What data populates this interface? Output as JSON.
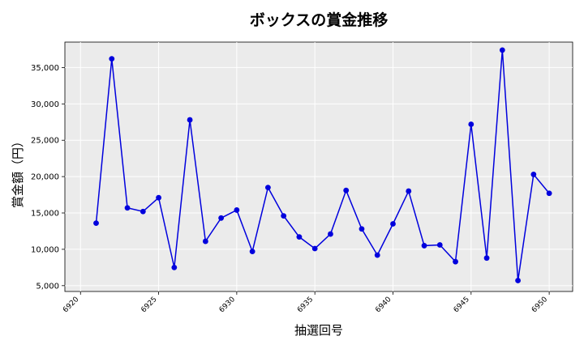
{
  "chart_data": {
    "type": "line",
    "title": "ボックスの賞金推移",
    "xlabel": "抽選回号",
    "ylabel": "賞金額（円）",
    "xlim": [
      6919,
      6951.5
    ],
    "ylim": [
      4200,
      38500
    ],
    "x_ticks": [
      6920,
      6925,
      6930,
      6935,
      6940,
      6945,
      6950
    ],
    "y_ticks": [
      5000,
      10000,
      15000,
      20000,
      25000,
      30000,
      35000
    ],
    "y_tick_labels": [
      "5,000",
      "10,000",
      "15,000",
      "20,000",
      "25,000",
      "30,000",
      "35,000"
    ],
    "grid": true,
    "series_color": "#0000dd",
    "plot_background": "#ebebeb",
    "x": [
      6921,
      6922,
      6923,
      6924,
      6925,
      6926,
      6927,
      6928,
      6929,
      6930,
      6931,
      6932,
      6933,
      6934,
      6935,
      6936,
      6937,
      6938,
      6939,
      6940,
      6941,
      6942,
      6943,
      6944,
      6945,
      6946,
      6947,
      6948,
      6949,
      6950
    ],
    "values": [
      13600,
      36200,
      15700,
      15200,
      17100,
      7500,
      27800,
      11100,
      14300,
      15400,
      9700,
      18500,
      14600,
      11700,
      10100,
      12100,
      18100,
      12800,
      9200,
      13500,
      18000,
      10500,
      10600,
      8300,
      27200,
      8800,
      37400,
      5700,
      20300,
      17700
    ]
  }
}
